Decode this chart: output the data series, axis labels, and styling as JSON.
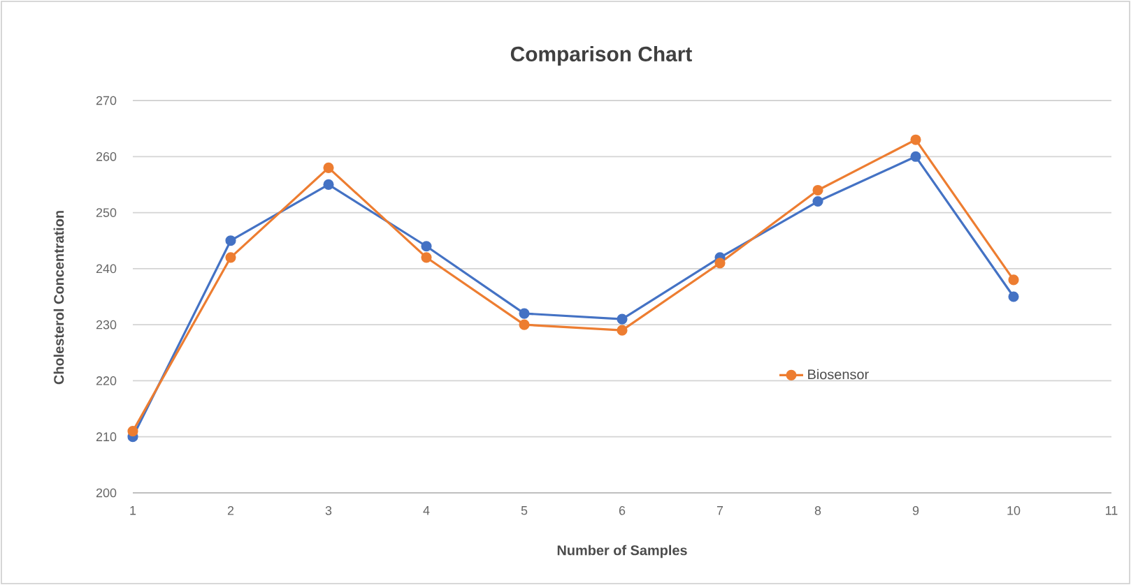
{
  "chart_data": {
    "type": "line",
    "title": "Comparison Chart",
    "xlabel": "Number of Samples",
    "ylabel": "Cholesterol Concentration",
    "x": [
      1,
      2,
      3,
      4,
      5,
      6,
      7,
      8,
      9,
      10
    ],
    "series": [
      {
        "color": "#4472c4",
        "values": [
          210,
          245,
          255,
          244,
          232,
          231,
          242,
          252,
          260,
          235
        ]
      },
      {
        "name": "Biosensor",
        "color": "#ed7d31",
        "values": [
          211,
          242,
          258,
          242,
          230,
          229,
          241,
          254,
          263,
          238
        ]
      }
    ],
    "xlim": [
      1,
      11
    ],
    "xticks": [
      1,
      2,
      3,
      4,
      5,
      6,
      7,
      8,
      9,
      10,
      11
    ],
    "ylim": [
      200,
      270
    ],
    "yticks": [
      200,
      210,
      220,
      230,
      240,
      250,
      260,
      270
    ],
    "grid": "y",
    "legend": "right",
    "marker": "circle",
    "line_style": "solid"
  }
}
